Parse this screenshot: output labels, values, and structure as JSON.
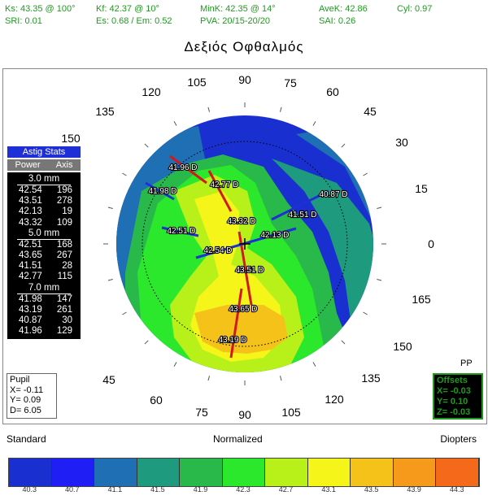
{
  "stats": {
    "ks": "Ks: 43.35 @ 100°",
    "kf": "Kf: 42.37 @ 10°",
    "mink": "MinK: 42.35 @  14°",
    "avek": "AveK: 42.86",
    "cyl": "Cyl:  0.97",
    "sri": "SRI: 0.01",
    "es": "Es: 0.68 / Em: 0.52",
    "pva": "PVA: 20/15-20/20",
    "sai": "SAI: 0.26"
  },
  "title": "Δεξιός Οφθαλμός",
  "axis_labels": [
    "90",
    "75",
    "60",
    "45",
    "30",
    "15",
    "0",
    "165",
    "150",
    "135",
    "120",
    "105",
    "90",
    "75",
    "60",
    "45",
    "150",
    "135",
    "120",
    "105"
  ],
  "astig": {
    "button": "Astig Stats",
    "sub": [
      "Power",
      "Axis"
    ],
    "sections": [
      {
        "label": "3.0 mm",
        "rows": [
          [
            "42.54",
            "196"
          ],
          [
            "43.51",
            "278"
          ],
          [
            "42.13",
            "19"
          ],
          [
            "43.32",
            "109"
          ]
        ]
      },
      {
        "label": "5.0 mm",
        "rows": [
          [
            "42.51",
            "168"
          ],
          [
            "43.65",
            "267"
          ],
          [
            "41.51",
            "28"
          ],
          [
            "42.77",
            "115"
          ]
        ]
      },
      {
        "label": "7.0 mm",
        "rows": [
          [
            "41.98",
            "147"
          ],
          [
            "43.19",
            "261"
          ],
          [
            "40.87",
            "30"
          ],
          [
            "41.96",
            "129"
          ]
        ]
      }
    ]
  },
  "map_labels": [
    {
      "text": "41.96 D"
    },
    {
      "text": "42.77 D"
    },
    {
      "text": "41.98 D"
    },
    {
      "text": "40.87 D"
    },
    {
      "text": "43.32 D"
    },
    {
      "text": "41.51 D"
    },
    {
      "text": "42.51 D"
    },
    {
      "text": "42.13 D"
    },
    {
      "text": "42.54 D"
    },
    {
      "text": "43.51 D"
    },
    {
      "text": "43.65 D"
    },
    {
      "text": "43.19 D"
    }
  ],
  "pupil": {
    "title": "Pupil",
    "x": "X= -0.11",
    "y": "Y=  0.09",
    "d": "D=  6.05"
  },
  "offsets": {
    "title": "Offsets",
    "x": "X= -0.03",
    "y": "Y=  0.10",
    "z": "Z= -0.03"
  },
  "pp": "PP",
  "footer": {
    "left": "Standard",
    "center": "Normalized",
    "right": "Diopters"
  },
  "scale": {
    "colors": [
      "#1a2fd0",
      "#1e1ef5",
      "#1f6fb5",
      "#1e9a7e",
      "#29b94a",
      "#2ce82c",
      "#b8f01a",
      "#f5f51a",
      "#f5c21a",
      "#f59a1a",
      "#f56a1a"
    ],
    "values": [
      "40.3",
      "40.7",
      "41.1",
      "41.5",
      "41.9",
      "42.3",
      "42.7",
      "43.1",
      "43.5",
      "43.9",
      "44.3"
    ]
  }
}
